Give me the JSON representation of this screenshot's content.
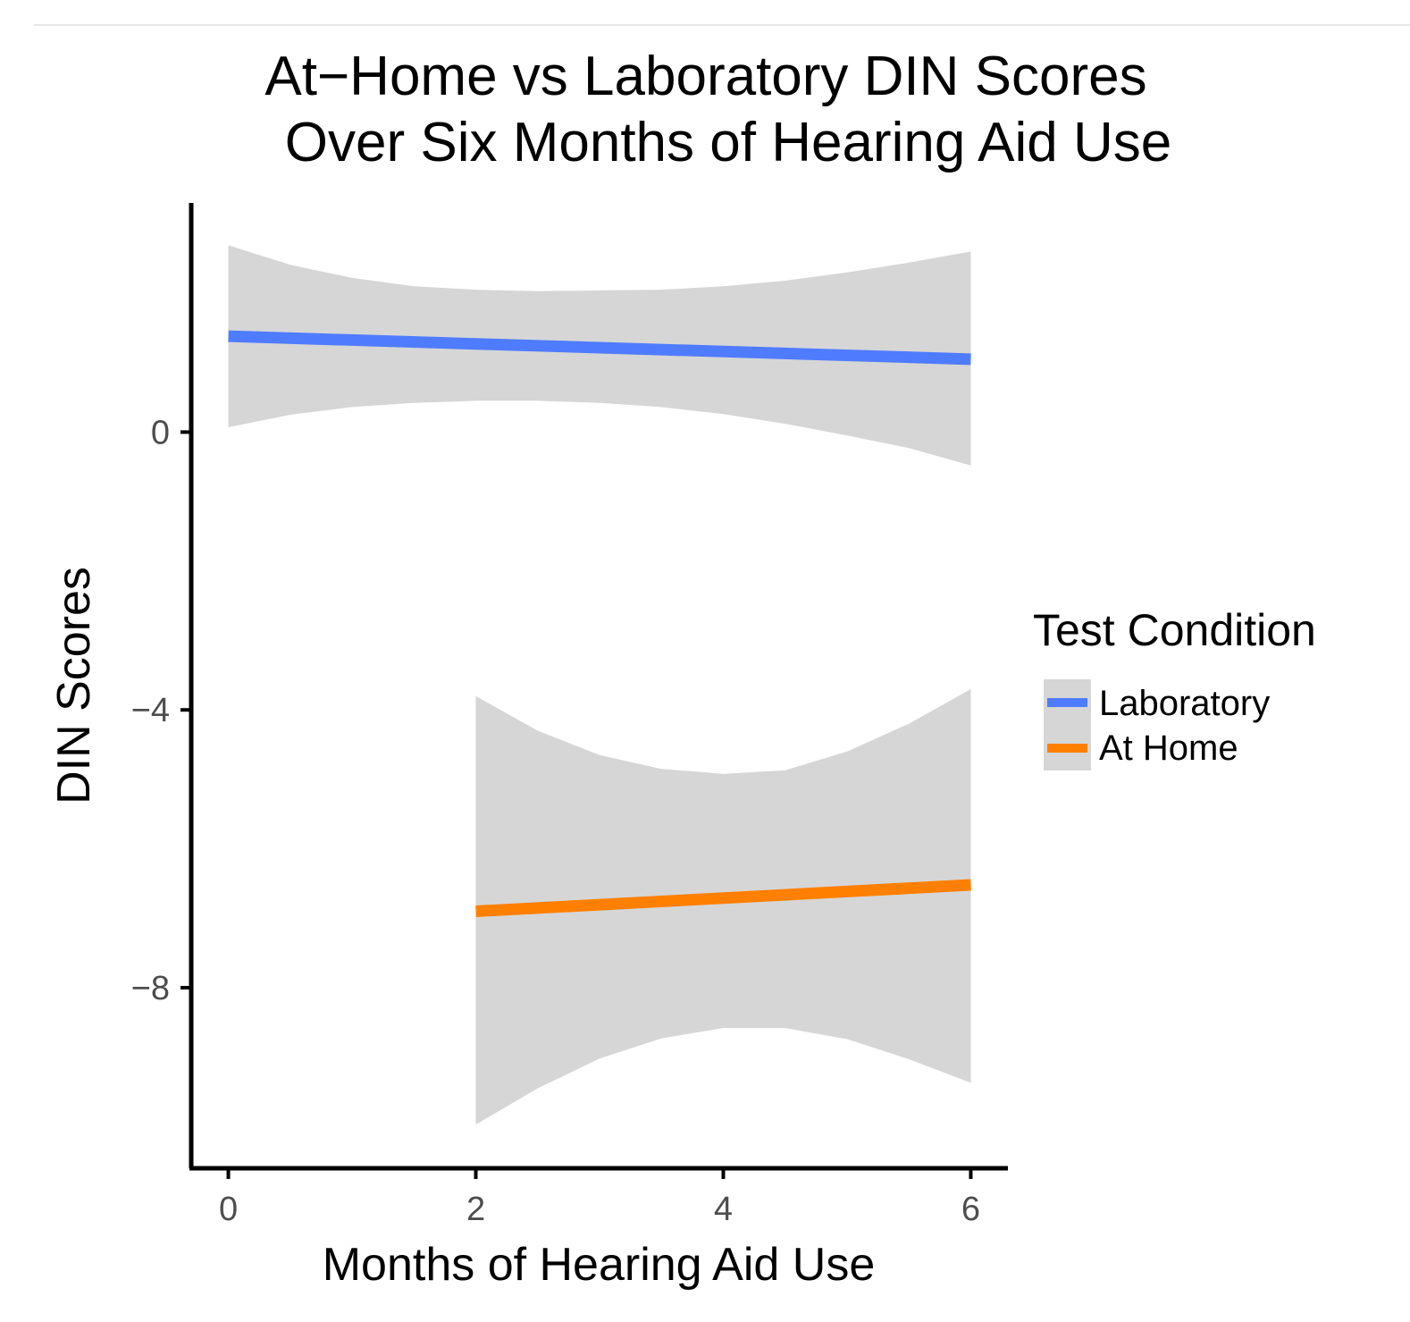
{
  "chart_data": {
    "type": "line",
    "title_lines": [
      "At−Home vs Laboratory DIN Scores",
      "Over Six Months of Hearing Aid Use"
    ],
    "xlabel": "Months of Hearing Aid Use",
    "ylabel": "DIN Scores",
    "xlim": [
      -0.3,
      6.3
    ],
    "ylim": [
      -10.6,
      3.3
    ],
    "x_ticks": [
      0,
      2,
      4,
      6
    ],
    "x_tick_labels": [
      "0",
      "2",
      "4",
      "6"
    ],
    "y_ticks": [
      0,
      -4,
      -8
    ],
    "y_tick_labels": [
      "0",
      "−4",
      "−8"
    ],
    "grid": false,
    "legend": {
      "title": "Test Condition",
      "position": "right",
      "entries": [
        {
          "label": "Laboratory",
          "color": "#4f7cff"
        },
        {
          "label": "At Home",
          "color": "#ff8000"
        }
      ]
    },
    "band_color": "#d6d6d6",
    "series": [
      {
        "name": "Laboratory",
        "color": "#4f7cff",
        "x": [
          0,
          6
        ],
        "y": [
          1.38,
          1.05
        ],
        "ci_x": [
          0,
          0.5,
          1,
          1.5,
          2,
          2.5,
          3,
          3.5,
          4,
          4.5,
          5,
          5.5,
          6
        ],
        "ci_lower": [
          0.07,
          0.25,
          0.36,
          0.42,
          0.45,
          0.45,
          0.42,
          0.36,
          0.26,
          0.12,
          -0.05,
          -0.23,
          -0.48
        ],
        "ci_upper": [
          2.69,
          2.41,
          2.22,
          2.1,
          2.05,
          2.03,
          2.04,
          2.05,
          2.1,
          2.18,
          2.3,
          2.44,
          2.6
        ]
      },
      {
        "name": "At Home",
        "color": "#ff8000",
        "x": [
          2,
          6
        ],
        "y": [
          -6.9,
          -6.52
        ],
        "ci_x": [
          2,
          2.5,
          3,
          3.5,
          4,
          4.5,
          5,
          5.5,
          6
        ],
        "ci_lower": [
          -9.97,
          -9.45,
          -9.02,
          -8.73,
          -8.58,
          -8.58,
          -8.74,
          -9.03,
          -9.37
        ],
        "ci_upper": [
          -3.8,
          -4.3,
          -4.65,
          -4.85,
          -4.92,
          -4.87,
          -4.6,
          -4.2,
          -3.7
        ]
      }
    ]
  }
}
